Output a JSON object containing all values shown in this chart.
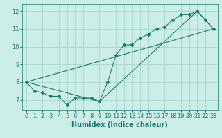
{
  "xlabel": "Humidex (Indice chaleur)",
  "background_color": "#cceee8",
  "grid_color": "#aad4ce",
  "line_color": "#1a7a6e",
  "xlim": [
    -0.5,
    23.5
  ],
  "ylim": [
    6.4,
    12.4
  ],
  "yticks": [
    7,
    8,
    9,
    10,
    11,
    12
  ],
  "xticks": [
    0,
    1,
    2,
    3,
    4,
    5,
    6,
    7,
    8,
    9,
    10,
    11,
    12,
    13,
    14,
    15,
    16,
    17,
    18,
    19,
    20,
    21,
    22,
    23
  ],
  "line1_x": [
    0,
    1,
    2,
    3,
    4,
    5,
    6,
    7,
    8,
    9,
    10,
    11,
    12,
    13,
    14,
    15,
    16,
    17,
    18,
    19,
    20,
    21,
    22,
    23
  ],
  "line1_y": [
    8.0,
    7.5,
    7.4,
    7.2,
    7.2,
    6.7,
    7.1,
    7.1,
    7.1,
    6.9,
    8.0,
    9.5,
    10.1,
    10.1,
    10.5,
    10.7,
    11.0,
    11.1,
    11.5,
    11.8,
    11.8,
    12.0,
    11.5,
    11.0
  ],
  "line2_x": [
    0,
    9,
    21,
    23
  ],
  "line2_y": [
    8.0,
    6.9,
    12.0,
    11.0
  ],
  "line3_x": [
    0,
    23
  ],
  "line3_y": [
    8.0,
    11.0
  ],
  "xlabel_fontsize": 7,
  "tick_fontsize": 6
}
